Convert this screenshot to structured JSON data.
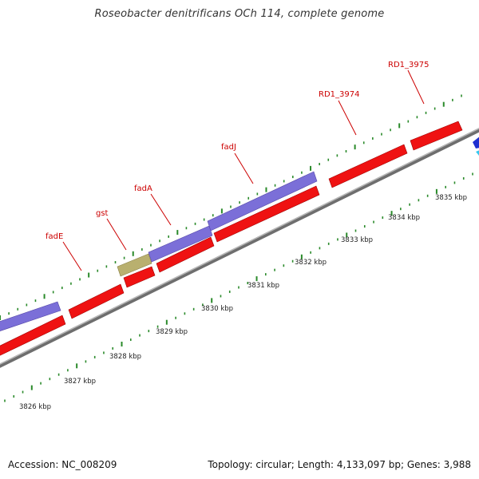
{
  "title": "Roseobacter denitrificans OCh 114, complete genome",
  "footer": {
    "accession": "Accession: NC_008209",
    "summary": "Topology: circular; Length: 4,133,097 bp; Genes: 3,988"
  },
  "colors": {
    "forward_cds": "#7b6fd8",
    "reverse_cds": "#ef1212",
    "gst_cds": "#b9b06f",
    "backbone": "#8a8a8a",
    "tick": "#2a8a2a",
    "label": "#cc0000",
    "offscreen_blue": "#1f2fd0",
    "offscreen_cyan": "#33c8f0"
  },
  "kbp_labels": [
    "3826 kbp",
    "3827 kbp",
    "3828 kbp",
    "3829 kbp",
    "3830 kbp",
    "3831 kbp",
    "3832 kbp",
    "3833 kbp",
    "3834 kbp",
    "3835 kbp"
  ],
  "gene_labels": [
    {
      "name": "fadE",
      "gene_pos": 102
    },
    {
      "name": "gst",
      "gene_pos": 158
    },
    {
      "name": "fadA",
      "gene_pos": 215
    },
    {
      "name": "fadJ",
      "gene_pos": 317
    },
    {
      "name": "RD1_3974",
      "gene_pos": 446
    },
    {
      "name": "RD1_3975",
      "gene_pos": 531
    }
  ]
}
